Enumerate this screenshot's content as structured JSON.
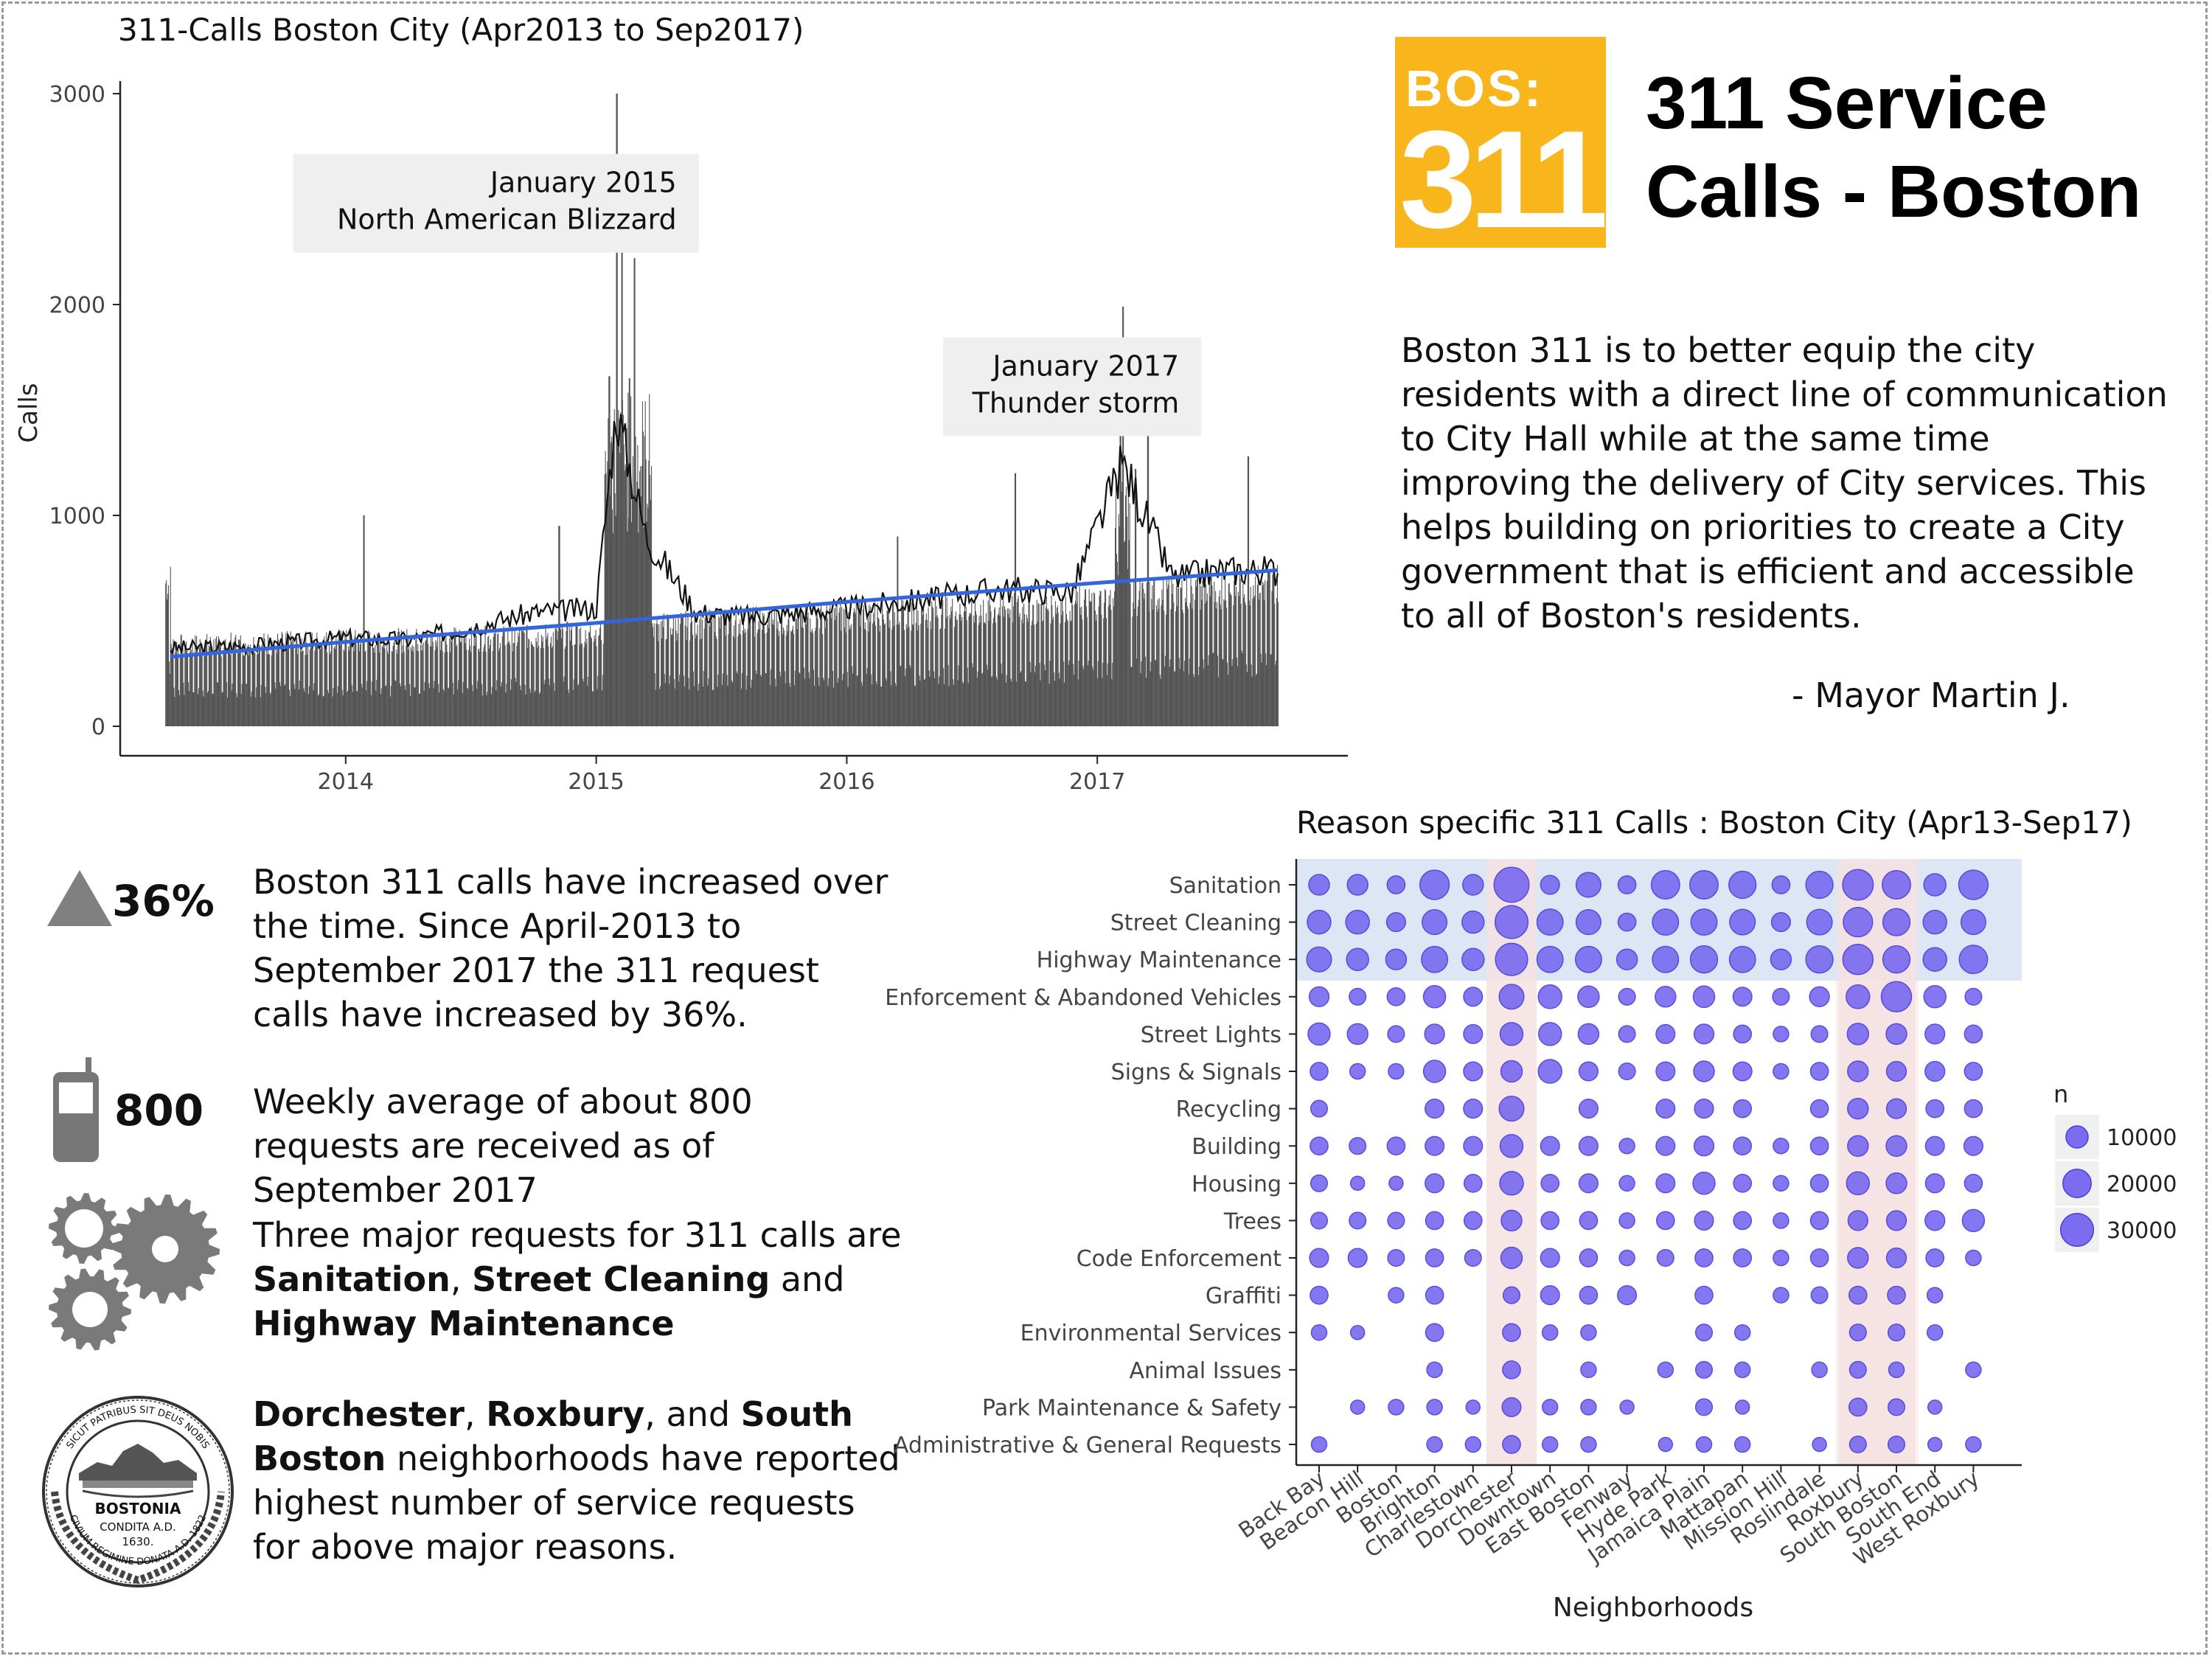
{
  "colors": {
    "bar": "#555555",
    "trend": "#3366dd",
    "point": "#7b6cf0",
    "point_stroke": "#4a3fd8",
    "band_blue": "#dde6f5",
    "band_pink": "#f5e2e2",
    "logo": "#f9b51c"
  },
  "logo": {
    "top": "BOS:",
    "number": "311"
  },
  "header": {
    "line1": "311 Service",
    "line2": "Calls - Boston"
  },
  "quote": {
    "text": "Boston 311 is to better equip the city residents with a direct line of communication to City Hall while at the same time improving  the delivery of City services. This helps building on priorities to create a City government that is efficient and accessible to all of Boston's residents.",
    "signature": "- Mayor Martin J."
  },
  "stats": [
    {
      "icon": "triangle-up-icon",
      "value": "36%",
      "text": "Boston 311 calls have increased over the time. Since April-2013 to September 2017  the 311 request calls have increased by 36%."
    },
    {
      "icon": "phone-icon",
      "value": "800",
      "text": "Weekly average of  about 800 requests are received as of September 2017"
    },
    {
      "icon": "gears-icon",
      "pre": "Three major requests  for 311 calls are ",
      "b1": "Sanitation",
      "m1": ", ",
      "b2": "Street Cleaning",
      "m2": " and ",
      "b3": "Highway Maintenance"
    },
    {
      "icon": "boston-seal-icon",
      "seal_text": [
        "BOSTONIA",
        "CONDITA A.D.",
        "1630.",
        "SICUT PATRIBUS SIT DEUS NOBIS",
        "CIVIUM REGIMINE DONATA A.D. 1822"
      ],
      "b1": "Dorchester",
      "m1": ",  ",
      "b2": "Roxbury",
      "m2": ",  and ",
      "b3": "South Boston",
      "post": " neighborhoods have reported highest number of service requests  for above  major reasons."
    }
  ],
  "chart_data": [
    {
      "type": "bar",
      "title": "311-Calls Boston City (Apr2013 to Sep2017)",
      "xlabel": "",
      "ylabel": "Calls",
      "xlim": [
        2013.25,
        2017.75
      ],
      "ylim": [
        0,
        3000
      ],
      "x_ticks": [
        2014,
        2015,
        2016,
        2017
      ],
      "y_ticks": [
        0,
        1000,
        2000,
        3000
      ],
      "x_tick_labels": [
        "2014",
        "2015",
        "2016",
        "2017"
      ],
      "y_tick_labels": [
        "0",
        "1000",
        "2000",
        "3000"
      ],
      "grid": false,
      "series": [
        {
          "kind": "daily-bars",
          "baseline": [
            [
              2013.3,
              380
            ],
            [
              2014.0,
              400
            ],
            [
              2014.75,
              420
            ],
            [
              2015.25,
              470
            ],
            [
              2016.0,
              520
            ],
            [
              2016.75,
              560
            ],
            [
              2017.25,
              620
            ],
            [
              2017.72,
              680
            ]
          ],
          "spikes": [
            [
              2015.08,
              3000
            ],
            [
              2015.1,
              2700
            ],
            [
              2015.05,
              1660
            ],
            [
              2015.13,
              1650
            ],
            [
              2015.15,
              2220
            ],
            [
              2014.07,
              1000
            ],
            [
              2017.1,
              1990
            ],
            [
              2017.09,
              1400
            ],
            [
              2017.15,
              1220
            ],
            [
              2017.2,
              1550
            ],
            [
              2016.67,
              1200
            ],
            [
              2017.6,
              1280
            ],
            [
              2014.85,
              950
            ],
            [
              2016.2,
              900
            ]
          ]
        },
        {
          "kind": "smoothed-line",
          "points": [
            [
              2013.3,
              370
            ],
            [
              2013.6,
              380
            ],
            [
              2014.0,
              420
            ],
            [
              2014.25,
              410
            ],
            [
              2014.5,
              470
            ],
            [
              2014.75,
              540
            ],
            [
              2015.0,
              560
            ],
            [
              2015.08,
              1500
            ],
            [
              2015.2,
              900
            ],
            [
              2015.4,
              540
            ],
            [
              2015.6,
              520
            ],
            [
              2016.0,
              560
            ],
            [
              2016.3,
              600
            ],
            [
              2016.6,
              650
            ],
            [
              2016.9,
              640
            ],
            [
              2017.1,
              1250
            ],
            [
              2017.3,
              700
            ],
            [
              2017.5,
              740
            ],
            [
              2017.72,
              740
            ]
          ]
        },
        {
          "kind": "trend",
          "points": [
            [
              2013.3,
              330
            ],
            [
              2014.0,
              400
            ],
            [
              2015.0,
              490
            ],
            [
              2016.0,
              590
            ],
            [
              2017.0,
              680
            ],
            [
              2017.72,
              740
            ]
          ]
        }
      ],
      "annotations": [
        {
          "lines": [
            "January 2015",
            "North American Blizzard"
          ],
          "x": 2014.6,
          "y": 2480
        },
        {
          "lines": [
            "January 2017",
            "Thunder storm"
          ],
          "x": 2016.9,
          "y": 1610
        }
      ]
    },
    {
      "type": "scatter",
      "title": "Reason specific 311 Calls : Boston City (Apr13-Sep17)",
      "xlabel": "Neighborhoods",
      "ylabel": "",
      "categories_x": [
        "Back Bay",
        "Beacon Hill",
        "Boston",
        "Brighton",
        "Charlestown",
        "Dorchester",
        "Downtown",
        "East Boston",
        "Fenway",
        "Hyde Park",
        "Jamaica Plain",
        "Mattapan",
        "Mission Hill",
        "Roslindale",
        "Roxbury",
        "South Boston",
        "South End",
        "West Roxbury"
      ],
      "categories_y": [
        "Sanitation",
        "Street Cleaning",
        "Highway Maintenance",
        "Enforcement & Abandoned Vehicles",
        "Street Lights",
        "Signs & Signals",
        "Recycling",
        "Building",
        "Housing",
        "Trees",
        "Code Enforcement",
        "Graffiti",
        "Environmental Services",
        "Animal Issues",
        "Park Maintenance & Safety",
        "Administrative & General Requests"
      ],
      "legend": {
        "title": "n",
        "values": [
          10000,
          20000,
          30000
        ],
        "labels": [
          "10000",
          "20000",
          "30000"
        ],
        "position": "right"
      },
      "highlight_rows": [
        "Sanitation",
        "Street Cleaning",
        "Highway Maintenance"
      ],
      "highlight_cols": [
        "Dorchester",
        "Roxbury",
        "South Boston"
      ],
      "values": [
        [
          8000,
          8000,
          5000,
          22000,
          8000,
          35000,
          6000,
          14000,
          5000,
          20000,
          20000,
          18000,
          5000,
          18000,
          25000,
          20000,
          10000,
          22000
        ],
        [
          12000,
          12000,
          6000,
          14000,
          10000,
          30000,
          16000,
          14000,
          5000,
          16000,
          16000,
          15000,
          6000,
          15000,
          22000,
          18000,
          12000,
          14000
        ],
        [
          14000,
          10000,
          8000,
          16000,
          10000,
          28000,
          16000,
          16000,
          8000,
          16000,
          18000,
          16000,
          8000,
          18000,
          24000,
          18000,
          12000,
          20000
        ],
        [
          7000,
          4000,
          5000,
          10000,
          6000,
          14000,
          12000,
          9000,
          4000,
          8000,
          9000,
          6000,
          4000,
          7000,
          12000,
          24000,
          10000,
          4000
        ],
        [
          10000,
          8000,
          4000,
          7000,
          6000,
          11000,
          11000,
          8000,
          4000,
          6000,
          7000,
          5000,
          3000,
          4000,
          9000,
          8000,
          7000,
          5000
        ],
        [
          5000,
          3000,
          3000,
          10000,
          6000,
          9000,
          12000,
          6000,
          4000,
          6000,
          8000,
          6000,
          3000,
          5000,
          8000,
          7000,
          7000,
          5000
        ],
        [
          4000,
          0,
          0,
          6000,
          6000,
          14000,
          0,
          6000,
          0,
          6000,
          6000,
          5000,
          0,
          5000,
          8000,
          7000,
          5000,
          5000
        ],
        [
          5000,
          4000,
          5000,
          6000,
          6000,
          11000,
          6000,
          6000,
          3000,
          6000,
          7000,
          5000,
          3000,
          5000,
          8000,
          8000,
          6000,
          6000
        ],
        [
          4000,
          2000,
          2000,
          6000,
          5000,
          12000,
          5000,
          6000,
          3000,
          6000,
          10000,
          5000,
          3000,
          5000,
          11000,
          8000,
          6000,
          5000
        ],
        [
          4000,
          4000,
          4000,
          5000,
          5000,
          8000,
          5000,
          5000,
          3000,
          5000,
          6000,
          5000,
          3000,
          5000,
          7000,
          7000,
          7000,
          10000
        ],
        [
          6000,
          6000,
          4000,
          5000,
          4000,
          9000,
          6000,
          5000,
          3000,
          4000,
          5000,
          5000,
          3000,
          5000,
          8000,
          7000,
          5000,
          3000
        ],
        [
          5000,
          0,
          3000,
          5000,
          0,
          4000,
          6000,
          5000,
          6000,
          0,
          5000,
          0,
          3000,
          4000,
          5000,
          5000,
          3000,
          0
        ],
        [
          3000,
          2000,
          0,
          5000,
          0,
          5000,
          3000,
          3000,
          0,
          0,
          4000,
          3000,
          0,
          0,
          4000,
          4000,
          3000,
          0
        ],
        [
          0,
          0,
          0,
          3000,
          0,
          5000,
          0,
          3000,
          0,
          3000,
          4000,
          3000,
          0,
          3000,
          4000,
          3000,
          0,
          3000
        ],
        [
          0,
          2000,
          3000,
          3000,
          2000,
          6000,
          3000,
          3000,
          2000,
          0,
          4000,
          2000,
          0,
          0,
          5000,
          4000,
          2000,
          0
        ],
        [
          3000,
          0,
          0,
          3000,
          3000,
          5000,
          3000,
          3000,
          0,
          2000,
          3000,
          3000,
          0,
          2000,
          4000,
          4000,
          2000,
          3000
        ]
      ]
    }
  ]
}
